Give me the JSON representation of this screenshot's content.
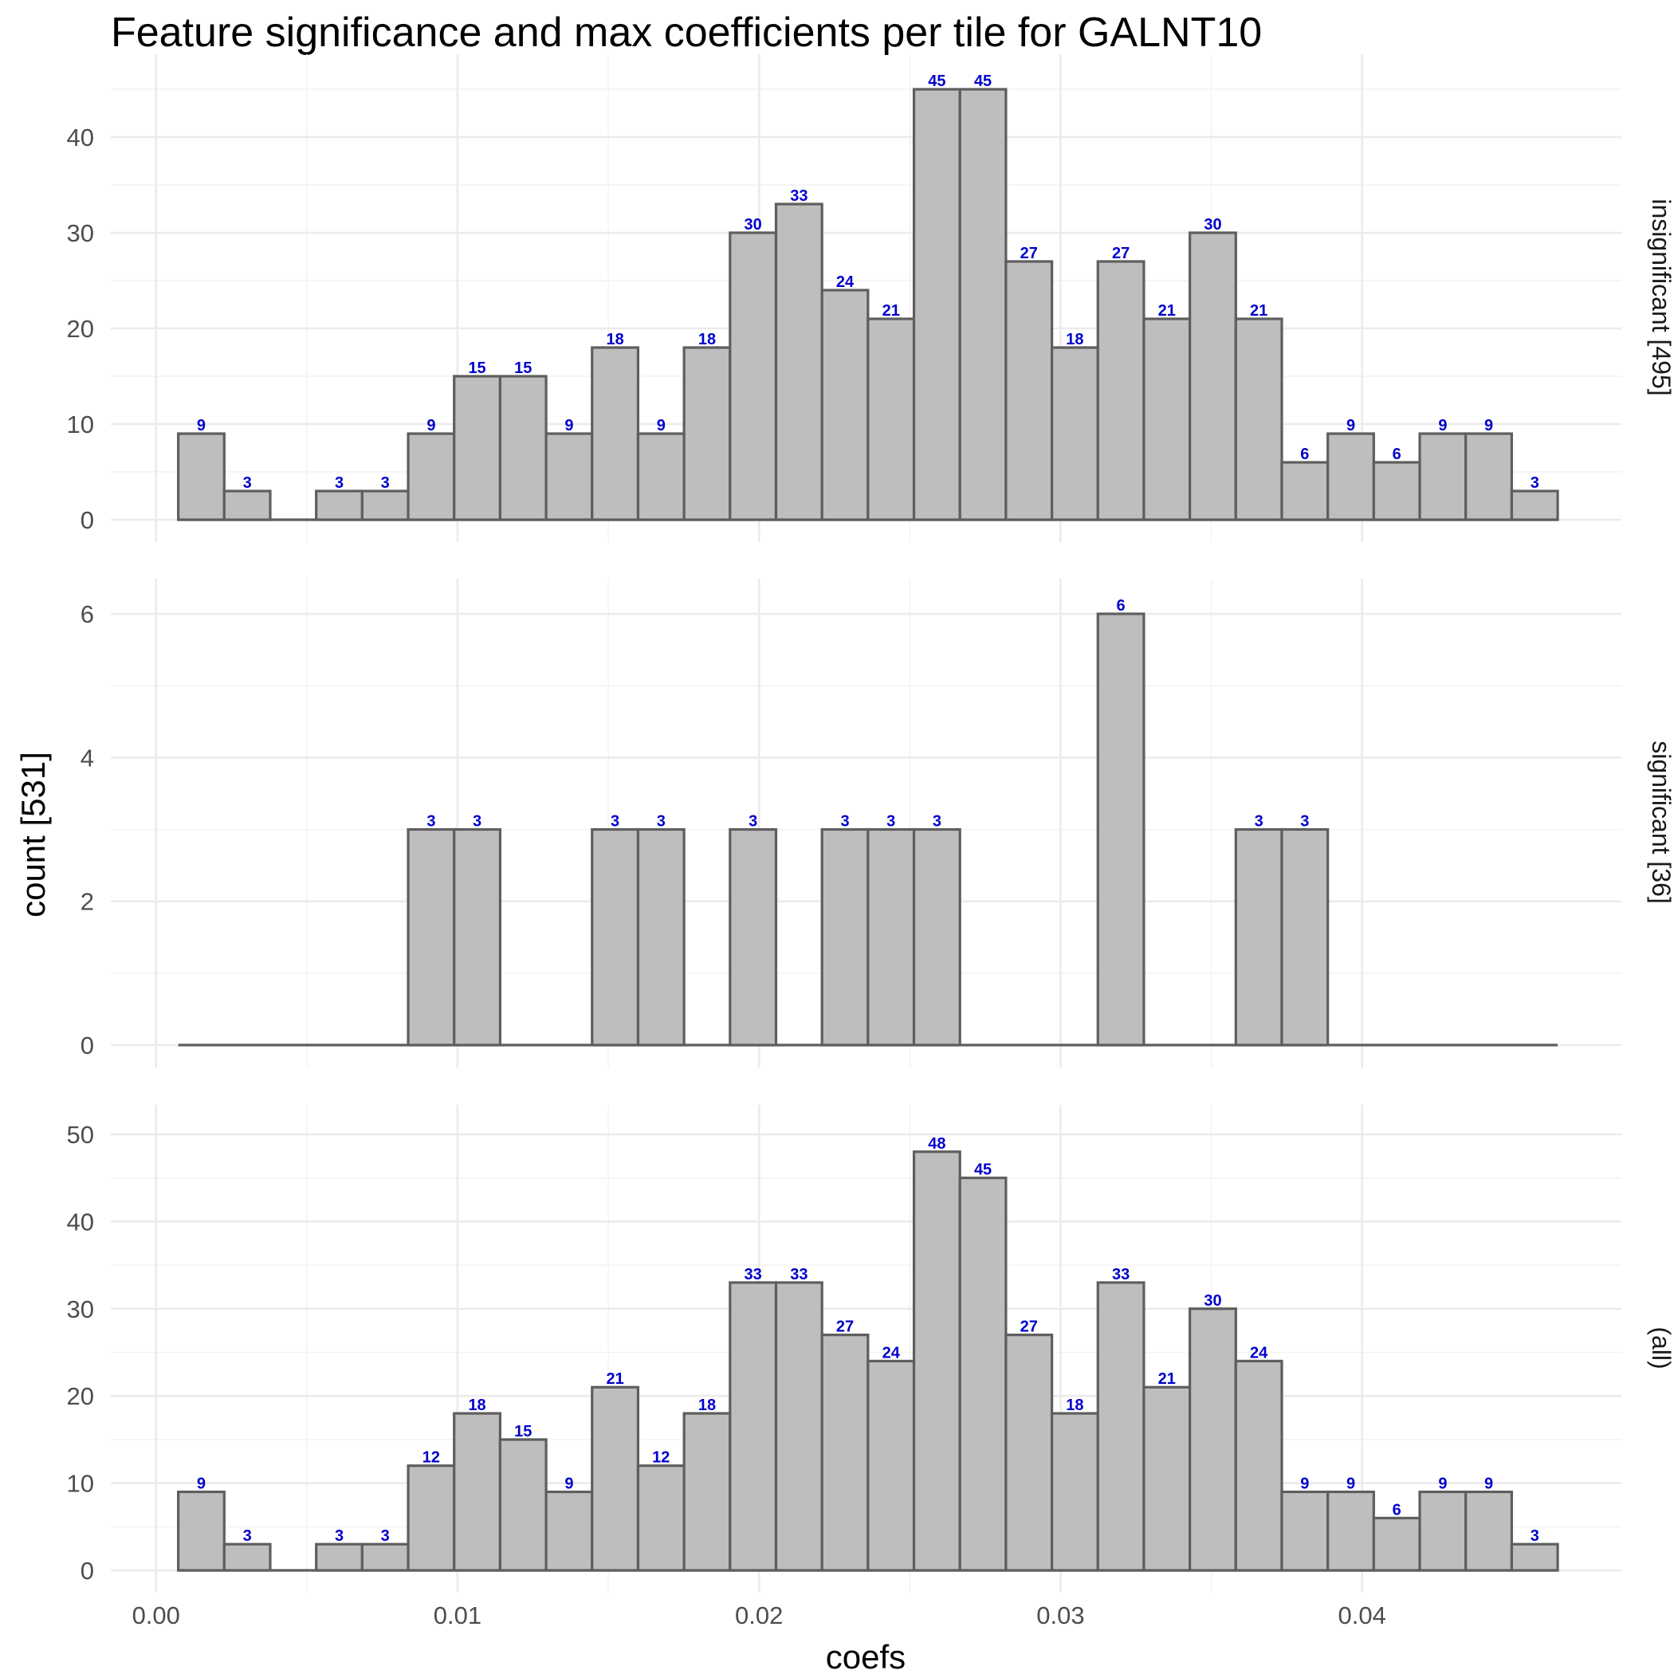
{
  "chart_data": {
    "type": "bar",
    "title": "Feature significance and max coefficients per tile for GALNT10",
    "xlabel": "coefs",
    "ylabel": "count [531]",
    "bins": {
      "first_center": 0.0015,
      "width": 0.001525
    },
    "xlim": [
      -0.0015,
      0.0486
    ],
    "x_ticks": [
      "0.00",
      "0.01",
      "0.02",
      "0.03",
      "0.04"
    ],
    "x_tick_values": [
      0.0,
      0.01,
      0.02,
      0.03,
      0.04
    ],
    "panels": [
      {
        "strip": "insignificant [495]",
        "ylim": [
          0,
          46.5
        ],
        "y_ticks": [
          "0",
          "10",
          "20",
          "30",
          "40"
        ],
        "y_tick_values": [
          0,
          10,
          20,
          30,
          40
        ],
        "values": [
          9,
          3,
          0,
          3,
          3,
          9,
          15,
          15,
          9,
          18,
          9,
          18,
          30,
          33,
          24,
          21,
          45,
          45,
          27,
          18,
          27,
          21,
          30,
          21,
          6,
          9,
          6,
          9,
          9,
          3
        ]
      },
      {
        "strip": "significant [36]",
        "ylim": [
          0,
          6.2
        ],
        "y_ticks": [
          "0",
          "2",
          "4",
          "6"
        ],
        "y_tick_values": [
          0,
          2,
          4,
          6
        ],
        "values": [
          0,
          0,
          0,
          0,
          0,
          3,
          3,
          0,
          0,
          3,
          3,
          0,
          3,
          0,
          3,
          3,
          3,
          0,
          0,
          0,
          6,
          0,
          0,
          3,
          3,
          0,
          0,
          0,
          0,
          0
        ]
      },
      {
        "strip": "(all)",
        "ylim": [
          0,
          51
        ],
        "y_ticks": [
          "0",
          "10",
          "20",
          "30",
          "40",
          "50"
        ],
        "y_tick_values": [
          0,
          10,
          20,
          30,
          40,
          50
        ],
        "values": [
          9,
          3,
          0,
          3,
          3,
          12,
          18,
          15,
          9,
          21,
          12,
          18,
          33,
          33,
          27,
          24,
          48,
          45,
          27,
          18,
          33,
          21,
          30,
          24,
          9,
          9,
          6,
          9,
          9,
          3
        ]
      }
    ],
    "grid": true,
    "legend": "none",
    "colors": {
      "bar_fill": "#bebebe",
      "bar_outline": "#5e5e5e",
      "count_label": "#0000cc"
    }
  }
}
